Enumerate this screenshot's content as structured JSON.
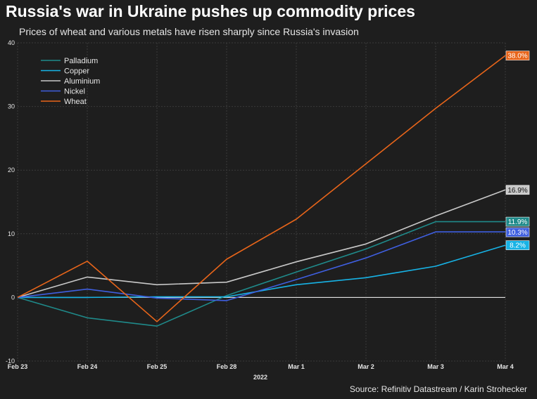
{
  "header": {
    "title": "Russia's war in Ukraine pushes up commodity prices",
    "subtitle": "Prices of wheat and various metals have risen sharply since Russia's invasion",
    "source": "Source: Refinitiv Datastream / Karin Strohecker"
  },
  "chart_data": {
    "type": "line",
    "title": "Russia's war in Ukraine pushes up commodity prices",
    "subtitle": "Prices of wheat and various metals have risen sharply since Russia's invasion",
    "xlabel": "2022",
    "ylabel": "",
    "categories": [
      "Feb 23",
      "Feb 24",
      "Feb 25",
      "Feb 28",
      "Mar 1",
      "Mar 2",
      "Mar 3",
      "Mar 4"
    ],
    "ylim": [
      -10,
      40
    ],
    "yticks": [
      -10,
      0,
      10,
      20,
      30,
      40
    ],
    "grid": true,
    "legend_position": "top-left",
    "series": [
      {
        "name": "Palladium",
        "color": "#1f8a8a",
        "values": [
          0,
          -3.2,
          -4.5,
          0.3,
          4.0,
          7.6,
          11.9,
          11.9
        ],
        "end_label": "11.9%"
      },
      {
        "name": "Copper",
        "color": "#17b3e6",
        "values": [
          0,
          0,
          0.1,
          0.1,
          2.0,
          3.1,
          4.9,
          8.2
        ],
        "end_label": "8.2%"
      },
      {
        "name": "Aluminium",
        "color": "#c8c8c8",
        "values": [
          0,
          3.2,
          2.0,
          2.4,
          5.6,
          8.4,
          12.8,
          16.9
        ],
        "end_label": "16.9%"
      },
      {
        "name": "Nickel",
        "color": "#3f5fe0",
        "values": [
          0,
          1.3,
          -0.1,
          -0.5,
          2.8,
          6.2,
          10.3,
          10.3
        ],
        "end_label": "10.3%"
      },
      {
        "name": "Wheat",
        "color": "#e8651a",
        "values": [
          0,
          5.7,
          -3.8,
          6.0,
          12.3,
          21.0,
          29.7,
          38.0
        ],
        "end_label": "38.0%"
      }
    ]
  }
}
